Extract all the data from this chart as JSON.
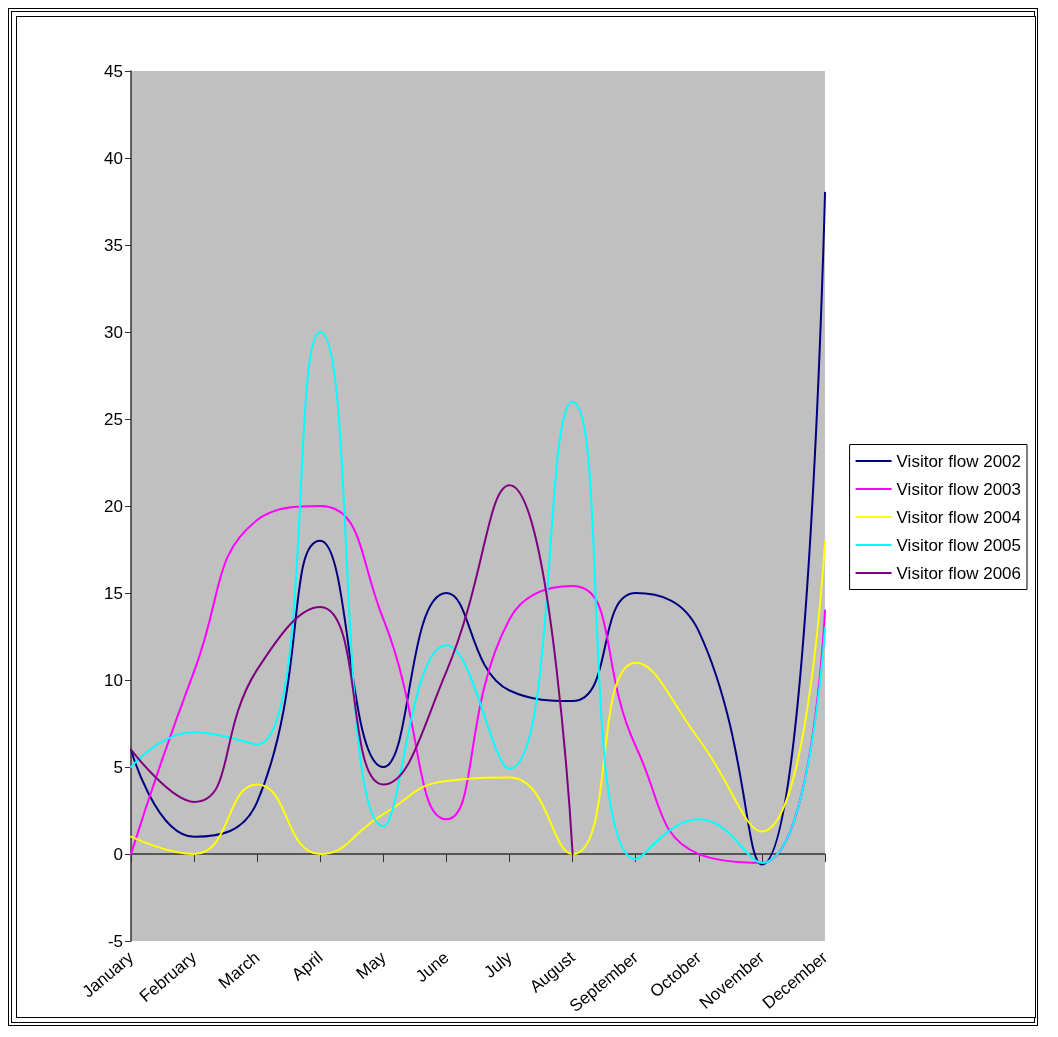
{
  "chart_data": {
    "type": "line",
    "categories": [
      "January",
      "February",
      "March",
      "April",
      "May",
      "June",
      "July",
      "August",
      "September",
      "October",
      "November",
      "December"
    ],
    "series": [
      {
        "name": "Visitor flow 2002",
        "color": "#000080",
        "values": [
          6,
          1,
          3,
          18,
          5,
          15,
          9.4,
          8.8,
          15,
          12.8,
          -0.6,
          38
        ]
      },
      {
        "name": "Visitor flow 2003",
        "color": "#ff00ff",
        "values": [
          0,
          10.5,
          19.2,
          20,
          13.5,
          2,
          13.5,
          15.4,
          6.2,
          0,
          -0.5,
          14
        ]
      },
      {
        "name": "Visitor flow 2004",
        "color": "#ffff00",
        "values": [
          1,
          0,
          4,
          0,
          2.3,
          4.2,
          4.4,
          0,
          11,
          6.6,
          1.3,
          18
        ]
      },
      {
        "name": "Visitor flow 2005",
        "color": "#00ffff",
        "values": [
          5,
          7,
          6.3,
          30,
          1.6,
          12,
          4.9,
          26,
          -0.3,
          2,
          -0.5,
          13
        ]
      },
      {
        "name": "Visitor flow 2006",
        "color": "#800080",
        "values": [
          6,
          3,
          10.6,
          14.2,
          4,
          10.5,
          21.2,
          0,
          null,
          null,
          null,
          null
        ]
      }
    ],
    "ylim": [
      -5,
      45
    ],
    "yticks": [
      -5,
      0,
      5,
      10,
      15,
      20,
      25,
      30,
      35,
      40,
      45
    ],
    "legend": "right",
    "marker": "none",
    "line_style": "solid"
  }
}
